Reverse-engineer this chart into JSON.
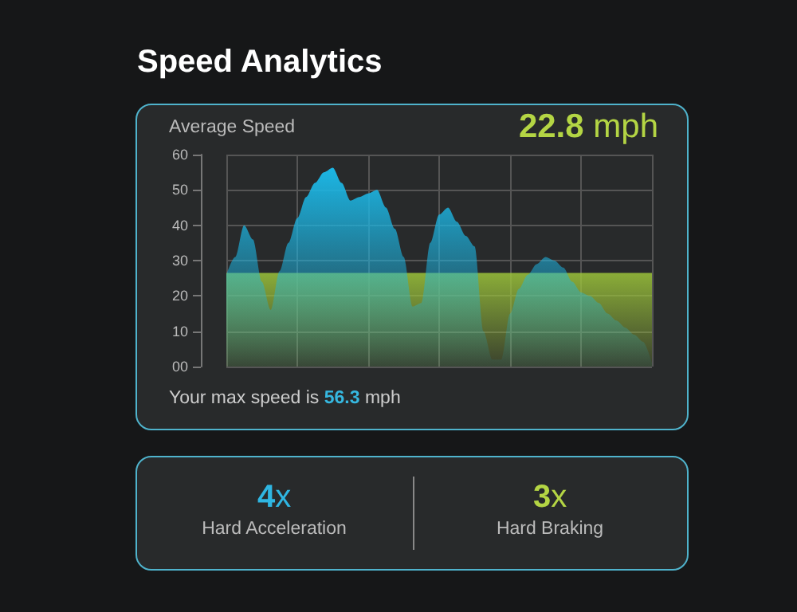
{
  "chart_data": {
    "type": "area",
    "title": "Speed Analytics",
    "annotations": [
      "Average Speed",
      "22.8 mph",
      "Your max speed is 56.3 mph",
      "4x",
      "Hard Acceleration",
      "3x",
      "Hard Braking"
    ],
    "categories": [
      null,
      null,
      null,
      null,
      null,
      null,
      null,
      null,
      null,
      null,
      null,
      null,
      null,
      null,
      null,
      null,
      null,
      null,
      null,
      null,
      null,
      null,
      null,
      null,
      null,
      null,
      null,
      null,
      null,
      null,
      null,
      null,
      null,
      null,
      null,
      null,
      null,
      null,
      null,
      null,
      null,
      null,
      null,
      null,
      null,
      null,
      null,
      null,
      null
    ],
    "series": [
      {
        "color": "#1cb6e4",
        "values": [
          26,
          31,
          40,
          36,
          24,
          16,
          27,
          35,
          42,
          48,
          52,
          55,
          56.3,
          52,
          47,
          48,
          49,
          50,
          45,
          39,
          31,
          17,
          18,
          35,
          43,
          45,
          41,
          37,
          34,
          10,
          2,
          2,
          15,
          22,
          26,
          29,
          31,
          30,
          28,
          24,
          21,
          20,
          18,
          15,
          13,
          11,
          9,
          7,
          1
        ]
      }
    ],
    "bands": [
      {
        "axis": "y",
        "from": 0,
        "to": 26.5,
        "color": "#9cc43a"
      }
    ],
    "ylim": [
      0,
      60
    ],
    "yticks": [
      {
        "value": 0,
        "label": "00"
      },
      10,
      20,
      30,
      40,
      50,
      60
    ],
    "grid": true,
    "tick_labels": "y"
  }
}
